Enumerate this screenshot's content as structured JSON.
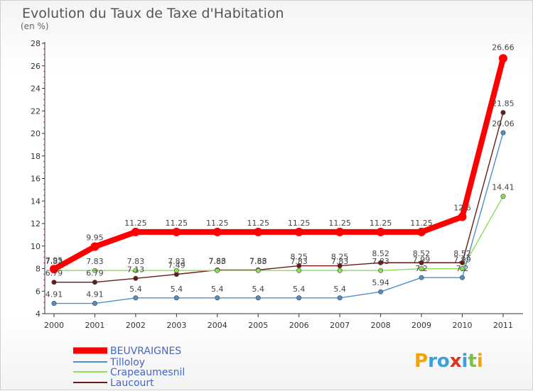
{
  "chart_data": {
    "type": "line",
    "title": "Evolution du Taux de Taxe d'Habitation",
    "subtitle": "(en %)",
    "xlabel": "",
    "ylabel": "",
    "ylim": [
      4,
      28
    ],
    "yticks": [
      4,
      6,
      8,
      10,
      12,
      14,
      16,
      18,
      20,
      22,
      24,
      26,
      28
    ],
    "categories": [
      "2000",
      "2001",
      "2002",
      "2003",
      "2004",
      "2005",
      "2006",
      "2007",
      "2008",
      "2009",
      "2010",
      "2011"
    ],
    "series": [
      {
        "name": "BEUVRAIGNES",
        "color": "#ff0000",
        "values": [
          7.95,
          9.95,
          11.25,
          11.25,
          11.25,
          11.25,
          11.25,
          11.25,
          11.25,
          11.25,
          12.6,
          26.66
        ],
        "labels": [
          "7.95",
          "9.95",
          "11.25",
          "11.25",
          "11.25",
          "11.25",
          "11.25",
          "11.25",
          "11.25",
          "11.25",
          "12.6",
          "26.66"
        ]
      },
      {
        "name": "Tilloloy",
        "color": "#4f8fc8",
        "values": [
          4.91,
          4.91,
          5.4,
          5.4,
          5.4,
          5.4,
          5.4,
          5.4,
          5.94,
          7.2,
          7.2,
          20.06
        ],
        "labels": [
          "4.91",
          "4.91",
          "5.4",
          "5.4",
          "5.4",
          "5.4",
          "5.4",
          "5.4",
          "5.94",
          "7.2",
          "7.2",
          "20.06"
        ]
      },
      {
        "name": "Crapeaumesnil",
        "color": "#8fdc57",
        "values": [
          7.83,
          7.83,
          7.83,
          7.83,
          7.83,
          7.83,
          7.83,
          7.83,
          7.83,
          7.99,
          7.99,
          14.41
        ],
        "labels": [
          "7.83",
          "7.83",
          "7.83",
          "7.83",
          "7.83",
          "7.83",
          "7.83",
          "7.83",
          "7.83",
          "7.99",
          "7.99",
          "14.41"
        ]
      },
      {
        "name": "Laucourt",
        "color": "#6b1a1a",
        "values": [
          6.79,
          6.79,
          7.13,
          7.49,
          7.88,
          7.88,
          8.25,
          8.25,
          8.52,
          8.52,
          8.52,
          21.85
        ],
        "labels": [
          "6.79",
          "6.79",
          "7.13",
          "7.49",
          "7.88",
          "7.88",
          "8.25",
          "8.25",
          "8.52",
          "8.52",
          "8.52",
          "21.85"
        ]
      }
    ],
    "legend_position": "bottom-left",
    "grid": false
  },
  "branding": {
    "logo_text": "Proxiti"
  }
}
